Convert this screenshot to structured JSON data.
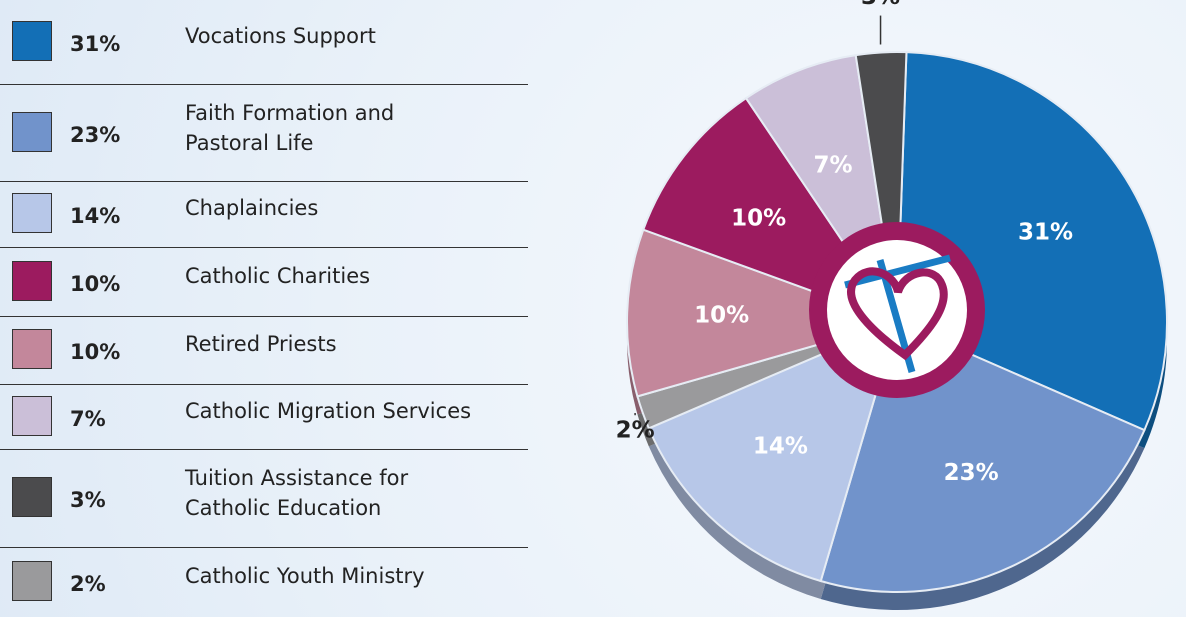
{
  "chart_data": {
    "type": "pie",
    "categories": [
      "Vocations Support",
      "Faith Formation and Pastoral Life",
      "Chaplaincies",
      "Catholic Charities",
      "Retired Priests",
      "Catholic Migration Services",
      "Tuition Assistance for Catholic Education",
      "Catholic Youth Ministry"
    ],
    "values": [
      31,
      23,
      14,
      10,
      10,
      7,
      3,
      2
    ],
    "value_labels": [
      "31%",
      "23%",
      "14%",
      "10%",
      "10%",
      "7%",
      "3%",
      "2%"
    ],
    "colors": [
      "#136fb6",
      "#7193cb",
      "#b7c7e8",
      "#9c1b5f",
      "#c3879b",
      "#cbbfd8",
      "#4b4b4d",
      "#9a9a9c"
    ],
    "legend": "left"
  }
}
